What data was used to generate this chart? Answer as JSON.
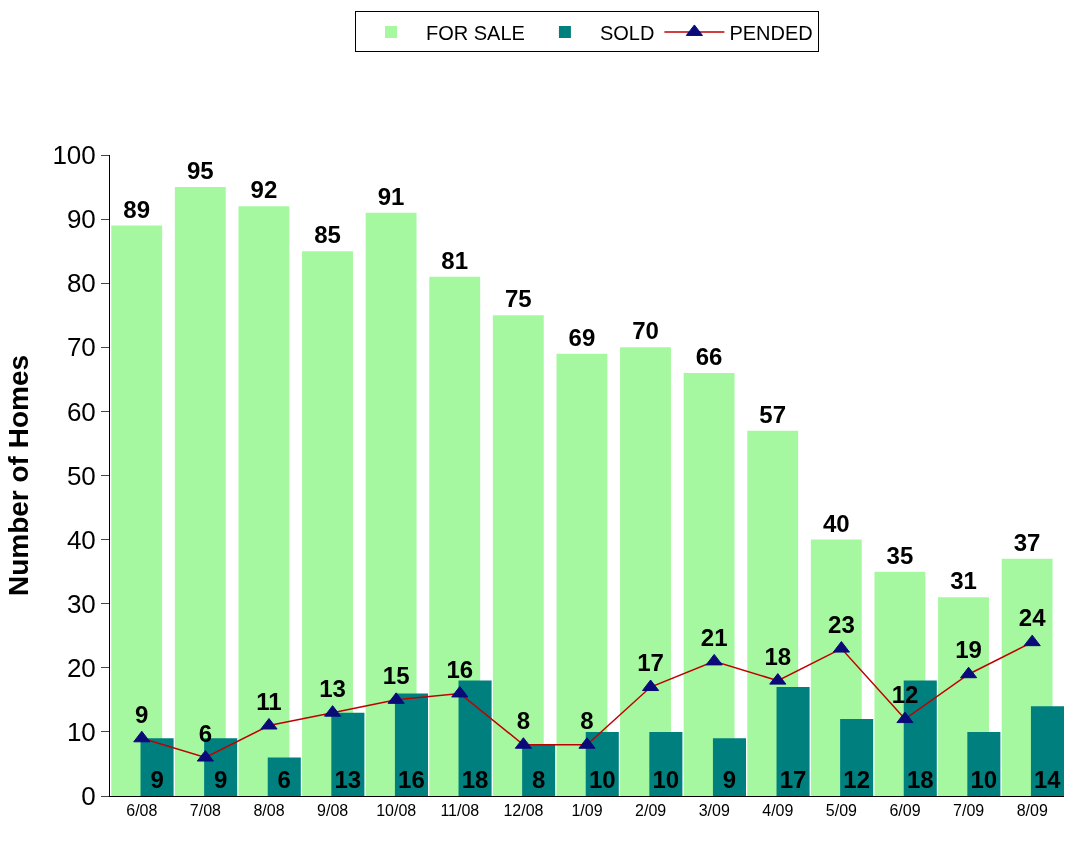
{
  "chart_data": {
    "type": "bar",
    "ylabel": "Number of Homes",
    "categories": [
      "6/08",
      "7/08",
      "8/08",
      "9/08",
      "10/08",
      "11/08",
      "12/08",
      "1/09",
      "2/09",
      "3/09",
      "4/09",
      "5/09",
      "6/09",
      "7/09",
      "8/09"
    ],
    "series": [
      {
        "name": "FOR SALE",
        "color": "#a6f8a0",
        "values": [
          89,
          95,
          92,
          85,
          91,
          81,
          75,
          69,
          70,
          66,
          57,
          40,
          35,
          31,
          37
        ]
      },
      {
        "name": "SOLD",
        "color": "#007f7f",
        "values": [
          9,
          9,
          6,
          13,
          16,
          18,
          8,
          10,
          10,
          9,
          17,
          12,
          18,
          10,
          14
        ]
      },
      {
        "name": "PENDED",
        "type": "line",
        "color": "#c00000",
        "marker": "triangle",
        "values": [
          9,
          6,
          11,
          13,
          15,
          16,
          8,
          8,
          17,
          21,
          18,
          23,
          12,
          19,
          24
        ]
      }
    ],
    "ylim": [
      0,
      100
    ],
    "yticks": [
      0,
      10,
      20,
      30,
      40,
      50,
      60,
      70,
      80,
      90,
      100
    ],
    "data_labels": true,
    "legend": "top"
  }
}
